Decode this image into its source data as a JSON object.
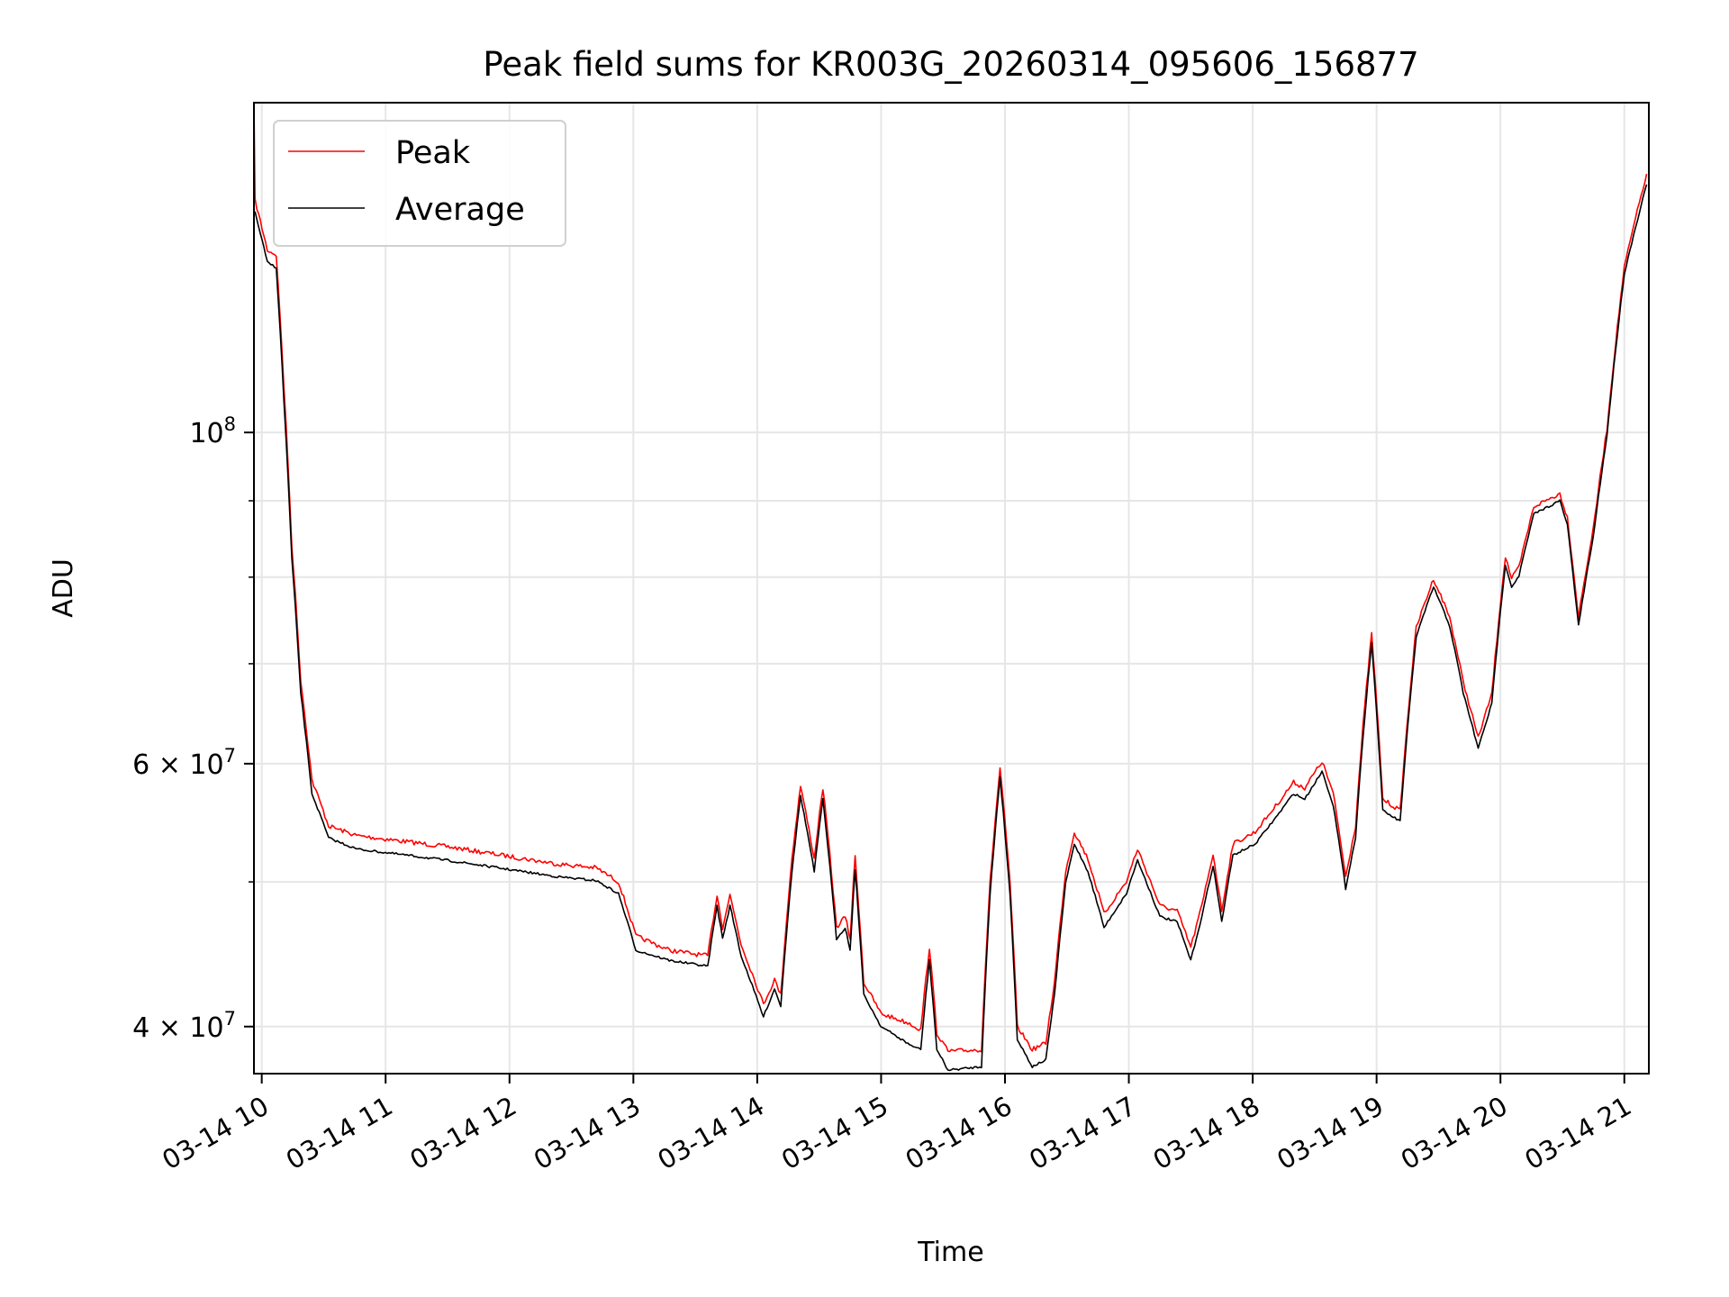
{
  "chart_data": {
    "type": "line",
    "title": "Peak field sums for KR003G_20260314_095606_156877",
    "xlabel": "Time",
    "ylabel": "ADU",
    "yscale": "log",
    "ylim": [
      37200000,
      166300000
    ],
    "xlim_hours": [
      9.937,
      21.198
    ],
    "grid": true,
    "legend_position": "top-left",
    "values_in_units_of": 10000000,
    "x_ticks": [
      {
        "hour": 10,
        "label": "03-14 10"
      },
      {
        "hour": 11,
        "label": "03-14 11"
      },
      {
        "hour": 12,
        "label": "03-14 12"
      },
      {
        "hour": 13,
        "label": "03-14 13"
      },
      {
        "hour": 14,
        "label": "03-14 14"
      },
      {
        "hour": 15,
        "label": "03-14 15"
      },
      {
        "hour": 16,
        "label": "03-14 16"
      },
      {
        "hour": 17,
        "label": "03-14 17"
      },
      {
        "hour": 18,
        "label": "03-14 18"
      },
      {
        "hour": 19,
        "label": "03-14 19"
      },
      {
        "hour": 20,
        "label": "03-14 20"
      },
      {
        "hour": 21,
        "label": "03-14 21"
      }
    ],
    "y_ticks_major": [
      {
        "value": 40000000,
        "mantissa": "4 × 10",
        "exponent": "7"
      },
      {
        "value": 60000000,
        "mantissa": "6 × 10",
        "exponent": "7"
      },
      {
        "value": 100000000,
        "mantissa": "10",
        "exponent": "8"
      }
    ],
    "y_ticks_minor": [
      50000000,
      70000000,
      80000000,
      90000000
    ],
    "x_hours": [
      9.946,
      10.045,
      10.117,
      10.18,
      10.243,
      10.315,
      10.405,
      10.54,
      10.766,
      11.49,
      12.387,
      12.7,
      12.88,
      13.02,
      13.29,
      13.6,
      13.676,
      13.72,
      13.78,
      13.87,
      14.05,
      14.14,
      14.19,
      14.28,
      14.35,
      14.46,
      14.53,
      14.64,
      14.71,
      14.75,
      14.79,
      14.86,
      15.0,
      15.23,
      15.32,
      15.39,
      15.45,
      15.54,
      15.81,
      15.88,
      15.96,
      16.04,
      16.1,
      16.22,
      16.33,
      16.4,
      16.49,
      16.56,
      16.67,
      16.8,
      16.98,
      17.07,
      17.25,
      17.39,
      17.5,
      17.59,
      17.68,
      17.75,
      17.84,
      18.02,
      18.2,
      18.33,
      18.42,
      18.56,
      18.65,
      18.75,
      18.83,
      18.89,
      18.96,
      19.05,
      19.19,
      19.32,
      19.46,
      19.59,
      19.7,
      19.82,
      19.93,
      20.04,
      20.09,
      20.15,
      20.27,
      20.48,
      20.54,
      20.63,
      20.75,
      20.86,
      21.0,
      21.18
    ],
    "series": [
      {
        "name": "Peak",
        "color": "#ff0000",
        "start_spike": {
          "hour": 9.937,
          "value": 16.6
        },
        "values": [
          14.3,
          13.25,
          13.15,
          10.7,
          8.4,
          6.82,
          5.85,
          5.45,
          5.37,
          5.28,
          5.14,
          5.11,
          5.0,
          4.6,
          4.5,
          4.46,
          4.9,
          4.66,
          4.9,
          4.54,
          4.14,
          4.3,
          4.2,
          5.18,
          5.8,
          5.18,
          5.78,
          4.66,
          4.74,
          4.58,
          5.2,
          4.28,
          4.08,
          4.02,
          3.98,
          4.52,
          3.96,
          3.85,
          3.86,
          5.0,
          5.96,
          5.0,
          4.0,
          3.86,
          3.9,
          4.28,
          5.08,
          5.4,
          5.18,
          4.76,
          5.0,
          5.26,
          4.82,
          4.78,
          4.52,
          4.82,
          5.22,
          4.78,
          5.3,
          5.4,
          5.64,
          5.83,
          5.78,
          6.02,
          5.73,
          5.04,
          5.45,
          6.35,
          7.33,
          5.68,
          5.58,
          7.4,
          7.98,
          7.52,
          6.8,
          6.24,
          6.68,
          8.26,
          7.98,
          8.12,
          8.92,
          9.1,
          8.77,
          7.52,
          8.62,
          10.05,
          12.9,
          14.9
        ]
      },
      {
        "name": "Average",
        "color": "#000000",
        "values": [
          14.04,
          13.0,
          12.9,
          10.47,
          8.23,
          6.69,
          5.73,
          5.35,
          5.26,
          5.17,
          5.04,
          5.01,
          4.91,
          4.5,
          4.43,
          4.39,
          4.82,
          4.58,
          4.82,
          4.46,
          4.06,
          4.24,
          4.13,
          5.08,
          5.71,
          5.08,
          5.68,
          4.58,
          4.66,
          4.5,
          5.1,
          4.2,
          4.0,
          3.89,
          3.86,
          4.43,
          3.86,
          3.74,
          3.76,
          4.91,
          5.88,
          4.91,
          3.92,
          3.76,
          3.8,
          4.2,
          4.99,
          5.3,
          5.08,
          4.66,
          4.91,
          5.17,
          4.74,
          4.7,
          4.43,
          4.74,
          5.13,
          4.7,
          5.21,
          5.3,
          5.54,
          5.73,
          5.68,
          5.93,
          5.63,
          4.95,
          5.35,
          6.25,
          7.23,
          5.58,
          5.49,
          7.3,
          7.88,
          7.42,
          6.69,
          6.14,
          6.58,
          8.16,
          7.88,
          8.02,
          8.82,
          9.0,
          8.67,
          7.42,
          8.52,
          9.95,
          12.77,
          14.66
        ]
      }
    ]
  }
}
